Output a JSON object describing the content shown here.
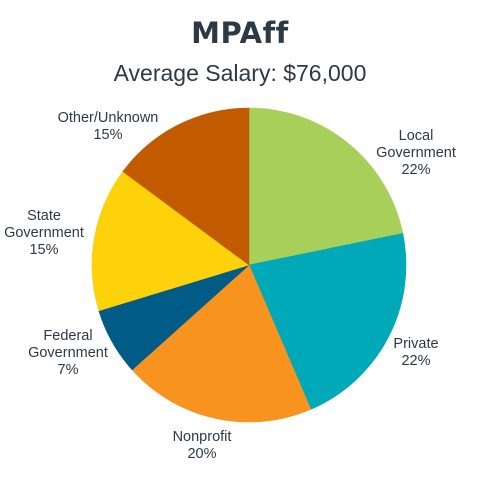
{
  "title": "MPAff",
  "subtitle": "Average Salary: $76,000",
  "chart_data": {
    "type": "pie",
    "title": "MPAff",
    "subtitle": "Average Salary: $76,000",
    "start": "12 o'clock",
    "direction": "clockwise",
    "slices": [
      {
        "label_lines": [
          "Local",
          "Government"
        ],
        "value_label": "22%",
        "value": 22,
        "color": "#a8cf5a"
      },
      {
        "label_lines": [
          "Private"
        ],
        "value_label": "22%",
        "value": 22,
        "color": "#00a9b8"
      },
      {
        "label_lines": [
          "Nonprofit"
        ],
        "value_label": "20%",
        "value": 20,
        "color": "#f7931e"
      },
      {
        "label_lines": [
          "Federal",
          "Government"
        ],
        "value_label": "7%",
        "value": 7,
        "color": "#005b86"
      },
      {
        "label_lines": [
          "State",
          "Government"
        ],
        "value_label": "15%",
        "value": 15,
        "color": "#fdd20b"
      },
      {
        "label_lines": [
          "Other/Unknown"
        ],
        "value_label": "15%",
        "value": 15,
        "color": "#c25a00"
      }
    ]
  }
}
